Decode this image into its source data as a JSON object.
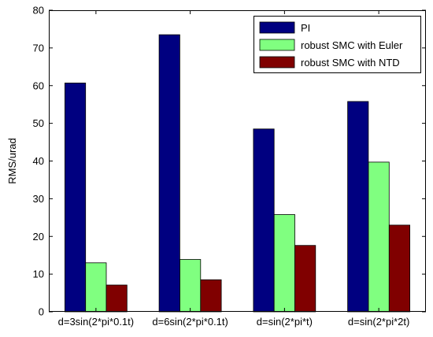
{
  "chart_data": {
    "type": "bar",
    "title": "",
    "xlabel": "",
    "ylabel": "RMS/urad",
    "ylim": [
      0,
      80
    ],
    "yticks": [
      0,
      10,
      20,
      30,
      40,
      50,
      60,
      70,
      80
    ],
    "categories": [
      "d=3sin(2*pi*0.1t)",
      "d=6sin(2*pi*0.1t)",
      "d=sin(2*pi*t)",
      "d=sin(2*pi*2t)"
    ],
    "series": [
      {
        "name": "PI",
        "color": "#000080",
        "values": [
          60.7,
          73.5,
          48.5,
          55.8
        ]
      },
      {
        "name": "robust SMC with Euler",
        "color": "#80FF80",
        "values": [
          13.0,
          13.9,
          25.8,
          39.7
        ]
      },
      {
        "name": "robust SMC with NTD",
        "color": "#800000",
        "values": [
          7.1,
          8.5,
          17.6,
          23.0
        ]
      }
    ],
    "legend_position": "top-right",
    "grid": false
  }
}
